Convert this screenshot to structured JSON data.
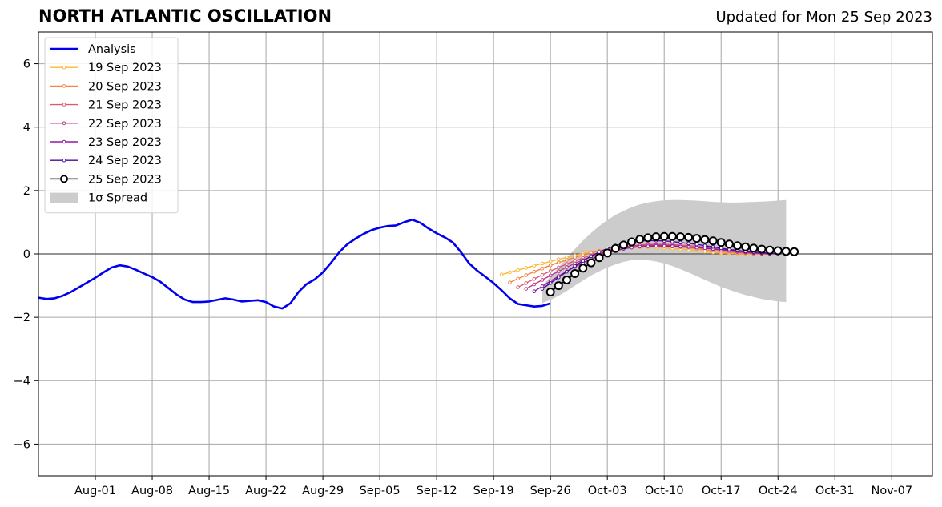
{
  "chart_data": {
    "type": "line",
    "title": "NORTH ATLANTIC OSCILLATION",
    "subtitle": "Updated for Mon 25 Sep 2023",
    "x_range": [
      "2023-07-25",
      "2023-11-12"
    ],
    "ylim": [
      -7,
      7
    ],
    "y_ticks": [
      -6,
      -4,
      -2,
      0,
      2,
      4,
      6
    ],
    "y_tick_labels": [
      "−6",
      "−4",
      "−2",
      "0",
      "2",
      "4",
      "6"
    ],
    "x_ticks": [
      "2023-08-01",
      "2023-08-08",
      "2023-08-15",
      "2023-08-22",
      "2023-08-29",
      "2023-09-05",
      "2023-09-12",
      "2023-09-19",
      "2023-09-26",
      "2023-10-03",
      "2023-10-10",
      "2023-10-17",
      "2023-10-24",
      "2023-10-31",
      "2023-11-07"
    ],
    "x_tick_labels": [
      "Aug-01",
      "Aug-08",
      "Aug-15",
      "Aug-22",
      "Aug-29",
      "Sep-05",
      "Sep-12",
      "Sep-19",
      "Sep-26",
      "Oct-03",
      "Oct-10",
      "Oct-17",
      "Oct-24",
      "Oct-31",
      "Nov-07"
    ],
    "grid": true,
    "legend_position": "top-left",
    "analysis": {
      "name": "Analysis",
      "color": "#0000ee",
      "start_date": "2023-07-25",
      "values": [
        -1.38,
        -1.42,
        -1.4,
        -1.32,
        -1.2,
        -1.05,
        -0.9,
        -0.75,
        -0.58,
        -0.43,
        -0.36,
        -0.4,
        -0.5,
        -0.62,
        -0.73,
        -0.88,
        -1.08,
        -1.28,
        -1.44,
        -1.52,
        -1.52,
        -1.5,
        -1.45,
        -1.4,
        -1.44,
        -1.5,
        -1.48,
        -1.46,
        -1.52,
        -1.66,
        -1.72,
        -1.56,
        -1.2,
        -0.95,
        -0.8,
        -0.58,
        -0.28,
        0.05,
        0.3,
        0.48,
        0.63,
        0.75,
        0.83,
        0.88,
        0.9,
        1.0,
        1.08,
        0.98,
        0.8,
        0.65,
        0.52,
        0.36,
        0.05,
        -0.3,
        -0.53,
        -0.72,
        -0.92,
        -1.15,
        -1.4,
        -1.58,
        -1.62,
        -1.66,
        -1.64,
        -1.56
      ]
    },
    "spread": {
      "name": "1σ Spread",
      "color": "#cccccc",
      "start_date": "2023-09-25",
      "upper": [
        -1.0,
        -0.72,
        -0.42,
        -0.12,
        0.15,
        0.42,
        0.66,
        0.88,
        1.07,
        1.23,
        1.36,
        1.47,
        1.56,
        1.62,
        1.66,
        1.69,
        1.7,
        1.7,
        1.69,
        1.68,
        1.66,
        1.64,
        1.63,
        1.62,
        1.62,
        1.63,
        1.64,
        1.65,
        1.66,
        1.68,
        1.7
      ],
      "lower": [
        -1.55,
        -1.45,
        -1.32,
        -1.17,
        -1.0,
        -0.84,
        -0.68,
        -0.55,
        -0.43,
        -0.33,
        -0.25,
        -0.2,
        -0.19,
        -0.2,
        -0.24,
        -0.3,
        -0.38,
        -0.48,
        -0.59,
        -0.7,
        -0.82,
        -0.93,
        -1.04,
        -1.13,
        -1.22,
        -1.3,
        -1.36,
        -1.42,
        -1.46,
        -1.5,
        -1.52
      ]
    },
    "series": [
      {
        "name": "19 Sep 2023",
        "color": "#fbb832",
        "start_date": "2023-09-20",
        "values": [
          -0.65,
          -0.58,
          -0.51,
          -0.44,
          -0.37,
          -0.3,
          -0.24,
          -0.17,
          -0.11,
          -0.05,
          0.01,
          0.06,
          0.1,
          0.14,
          0.17,
          0.19,
          0.2,
          0.21,
          0.21,
          0.2,
          0.19,
          0.17,
          0.15,
          0.13,
          0.1,
          0.07,
          0.05,
          0.03,
          0.02,
          0.01,
          0.0,
          0.0,
          0.0,
          0.0
        ]
      },
      {
        "name": "20 Sep 2023",
        "color": "#f58447",
        "start_date": "2023-09-21",
        "values": [
          -0.9,
          -0.78,
          -0.67,
          -0.56,
          -0.46,
          -0.36,
          -0.27,
          -0.19,
          -0.11,
          -0.04,
          0.03,
          0.09,
          0.14,
          0.18,
          0.21,
          0.23,
          0.24,
          0.25,
          0.25,
          0.24,
          0.23,
          0.21,
          0.19,
          0.16,
          0.13,
          0.1,
          0.07,
          0.05,
          0.03,
          0.02,
          0.01,
          0.0,
          0.0
        ]
      },
      {
        "name": "21 Sep 2023",
        "color": "#dd5a73",
        "start_date": "2023-09-22",
        "values": [
          -1.05,
          -0.92,
          -0.79,
          -0.66,
          -0.54,
          -0.43,
          -0.32,
          -0.22,
          -0.13,
          -0.04,
          0.04,
          0.11,
          0.17,
          0.22,
          0.26,
          0.28,
          0.3,
          0.3,
          0.3,
          0.29,
          0.28,
          0.26,
          0.24,
          0.21,
          0.17,
          0.14,
          0.1,
          0.07,
          0.05,
          0.03,
          0.02,
          0.0
        ]
      },
      {
        "name": "22 Sep 2023",
        "color": "#b93c8f",
        "start_date": "2023-09-23",
        "values": [
          -1.1,
          -0.96,
          -0.82,
          -0.68,
          -0.55,
          -0.42,
          -0.3,
          -0.19,
          -0.09,
          0.0,
          0.08,
          0.15,
          0.2,
          0.24,
          0.27,
          0.28,
          0.28,
          0.27,
          0.26,
          0.24,
          0.22,
          0.2,
          0.18,
          0.15,
          0.12,
          0.09,
          0.06,
          0.04,
          0.02,
          0.01,
          0.0
        ]
      },
      {
        "name": "23 Sep 2023",
        "color": "#8e1aa0",
        "start_date": "2023-09-24",
        "values": [
          -1.18,
          -1.02,
          -0.86,
          -0.7,
          -0.55,
          -0.41,
          -0.28,
          -0.16,
          -0.06,
          0.03,
          0.1,
          0.16,
          0.2,
          0.23,
          0.24,
          0.25,
          0.25,
          0.24,
          0.23,
          0.22,
          0.2,
          0.18,
          0.16,
          0.14,
          0.12,
          0.09,
          0.06,
          0.04,
          0.02,
          0.01
        ]
      },
      {
        "name": "24 Sep 2023",
        "color": "#4a0a9a",
        "start_date": "2023-09-25",
        "values": [
          -1.1,
          -0.92,
          -0.74,
          -0.56,
          -0.38,
          -0.22,
          -0.07,
          0.06,
          0.17,
          0.26,
          0.33,
          0.38,
          0.41,
          0.42,
          0.42,
          0.41,
          0.39,
          0.36,
          0.33,
          0.3,
          0.26,
          0.22,
          0.18,
          0.14,
          0.11,
          0.08,
          0.06,
          0.04,
          0.02,
          0.01
        ]
      },
      {
        "name": "25 Sep 2023",
        "color": "#000000",
        "start_date": "2023-09-26",
        "marker": "open-circle",
        "values": [
          -1.2,
          -1.0,
          -0.82,
          -0.62,
          -0.45,
          -0.28,
          -0.12,
          0.03,
          0.17,
          0.28,
          0.38,
          0.46,
          0.51,
          0.54,
          0.55,
          0.55,
          0.54,
          0.52,
          0.49,
          0.45,
          0.41,
          0.36,
          0.31,
          0.26,
          0.22,
          0.18,
          0.15,
          0.12,
          0.1,
          0.08,
          0.07
        ]
      }
    ]
  }
}
